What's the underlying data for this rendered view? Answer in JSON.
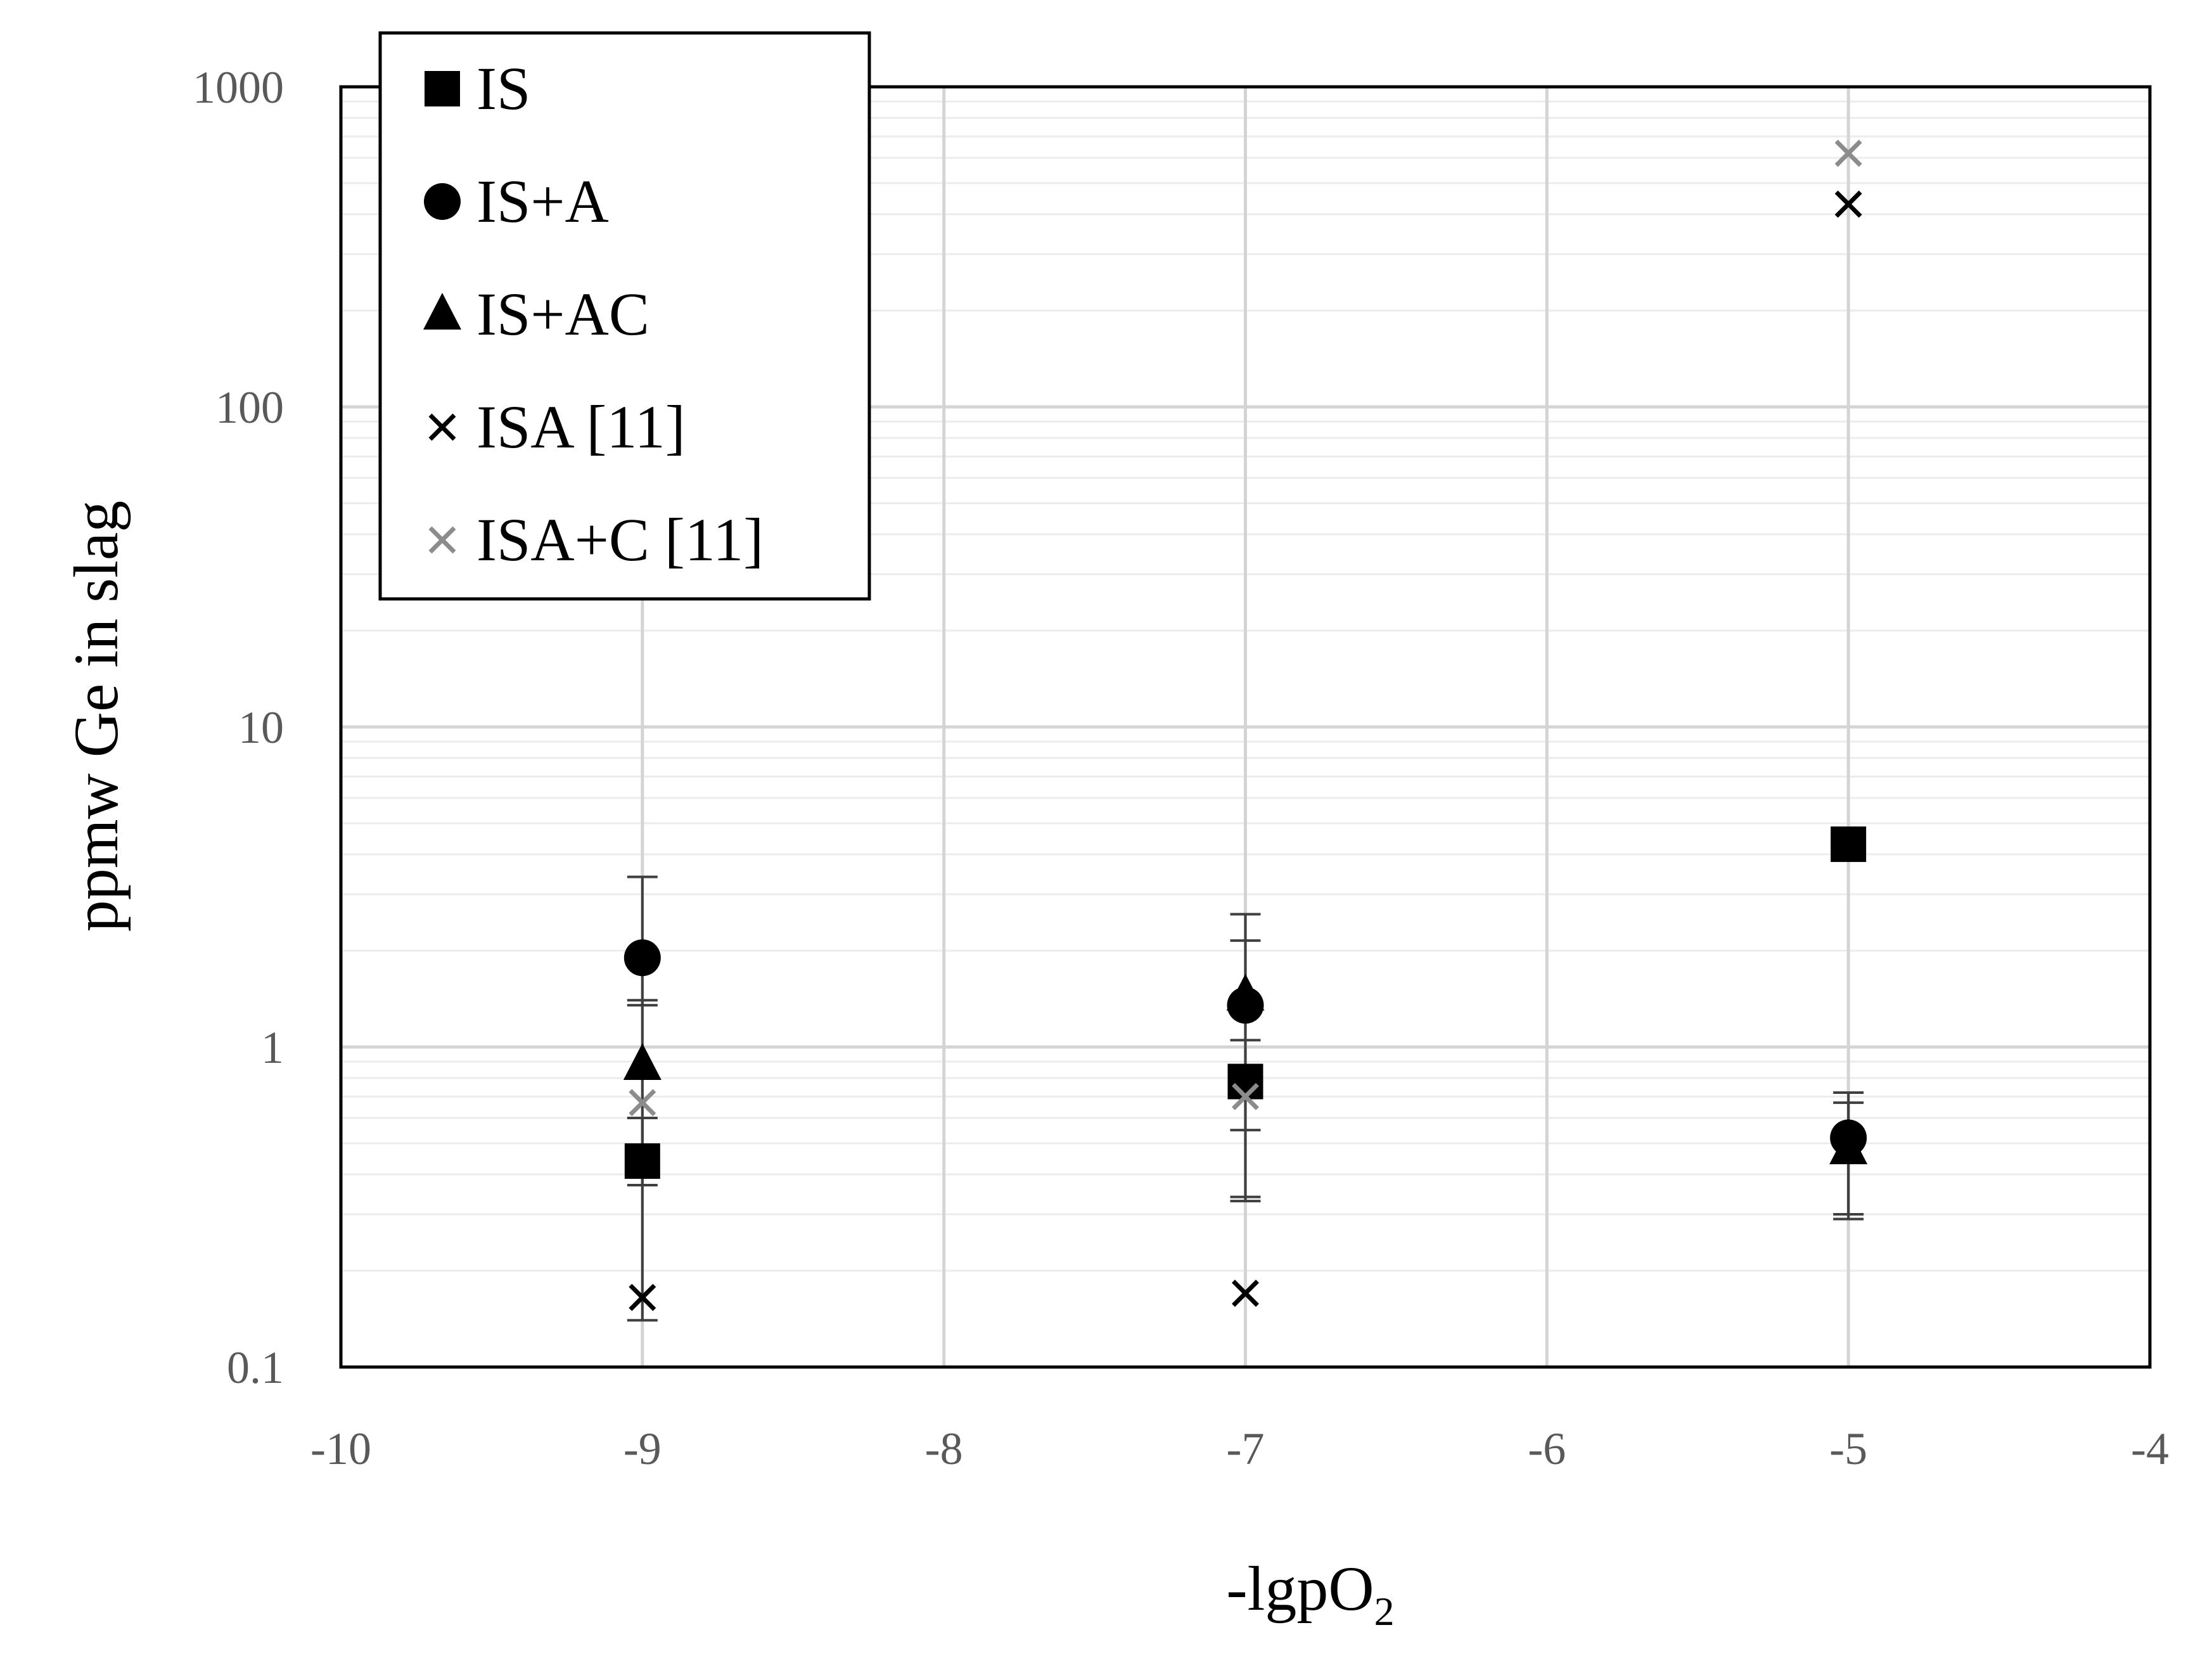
{
  "chart_data": {
    "type": "scatter",
    "xlabel": "-lgpO",
    "xlabel_subscript": "2",
    "ylabel": "ppmw Ge in slag",
    "xlim": [
      -10,
      -4
    ],
    "ylim": [
      0.1,
      1000
    ],
    "yscale": "log",
    "grid": true,
    "legend_position": "top-left",
    "x_ticks": [
      "-10",
      "-9",
      "-8",
      "-7",
      "-6",
      "-5",
      "-4"
    ],
    "y_ticks": [
      "0.1",
      "1",
      "10",
      "100",
      "1000"
    ],
    "series": [
      {
        "name": "IS",
        "marker": "square",
        "color": "#000000",
        "points": [
          {
            "x": -9,
            "y": 0.44,
            "err_low": 0.37,
            "err_high": 0.6
          },
          {
            "x": -7,
            "y": 0.78,
            "err_low": 0.55,
            "err_high": 1.05
          },
          {
            "x": -5,
            "y": 4.3
          }
        ]
      },
      {
        "name": "IS+A",
        "marker": "circle",
        "color": "#000000",
        "points": [
          {
            "x": -9,
            "y": 1.9,
            "err_low": 1.35,
            "err_high": 3.4
          },
          {
            "x": -7,
            "y": 1.35,
            "err_low": 0.34,
            "err_high": 2.6
          },
          {
            "x": -5,
            "y": 0.52,
            "err_low": 0.3,
            "err_high": 0.72
          }
        ]
      },
      {
        "name": "IS+AC",
        "marker": "triangle",
        "color": "#000000",
        "points": [
          {
            "x": -9,
            "y": 0.88,
            "err_low": 0.14,
            "err_high": 1.4
          },
          {
            "x": -7,
            "y": 1.45,
            "err_low": 0.33,
            "err_high": 2.15
          },
          {
            "x": -5,
            "y": 0.48,
            "err_low": 0.29,
            "err_high": 0.67
          }
        ]
      },
      {
        "name": "ISA [11]",
        "marker": "x",
        "color": "#000000",
        "points": [
          {
            "x": -9,
            "y": 0.165
          },
          {
            "x": -7,
            "y": 0.17
          },
          {
            "x": -5,
            "y": 430
          }
        ]
      },
      {
        "name": "ISA+C [11]",
        "marker": "x",
        "color": "#8c8c8c",
        "points": [
          {
            "x": -9,
            "y": 0.67
          },
          {
            "x": -7,
            "y": 0.7
          },
          {
            "x": -5,
            "y": 620
          }
        ]
      }
    ]
  }
}
